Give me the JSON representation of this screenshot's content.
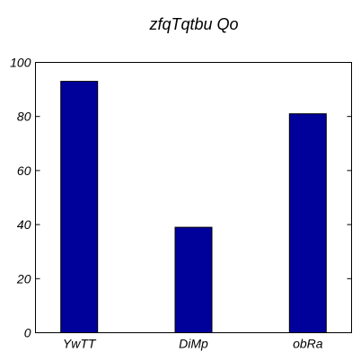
{
  "chart_data": {
    "type": "bar",
    "title": "zfqTqtbu  Qo",
    "xlabel": "",
    "ylabel": "",
    "categories": [
      "YwTT",
      "DiMp",
      "obRa"
    ],
    "values": [
      93,
      39,
      81
    ],
    "ylim": [
      0,
      100
    ],
    "yticks": [
      0,
      20,
      40,
      60,
      80,
      100
    ],
    "bar_color": "#00009b",
    "grid": false,
    "legend": "none"
  }
}
